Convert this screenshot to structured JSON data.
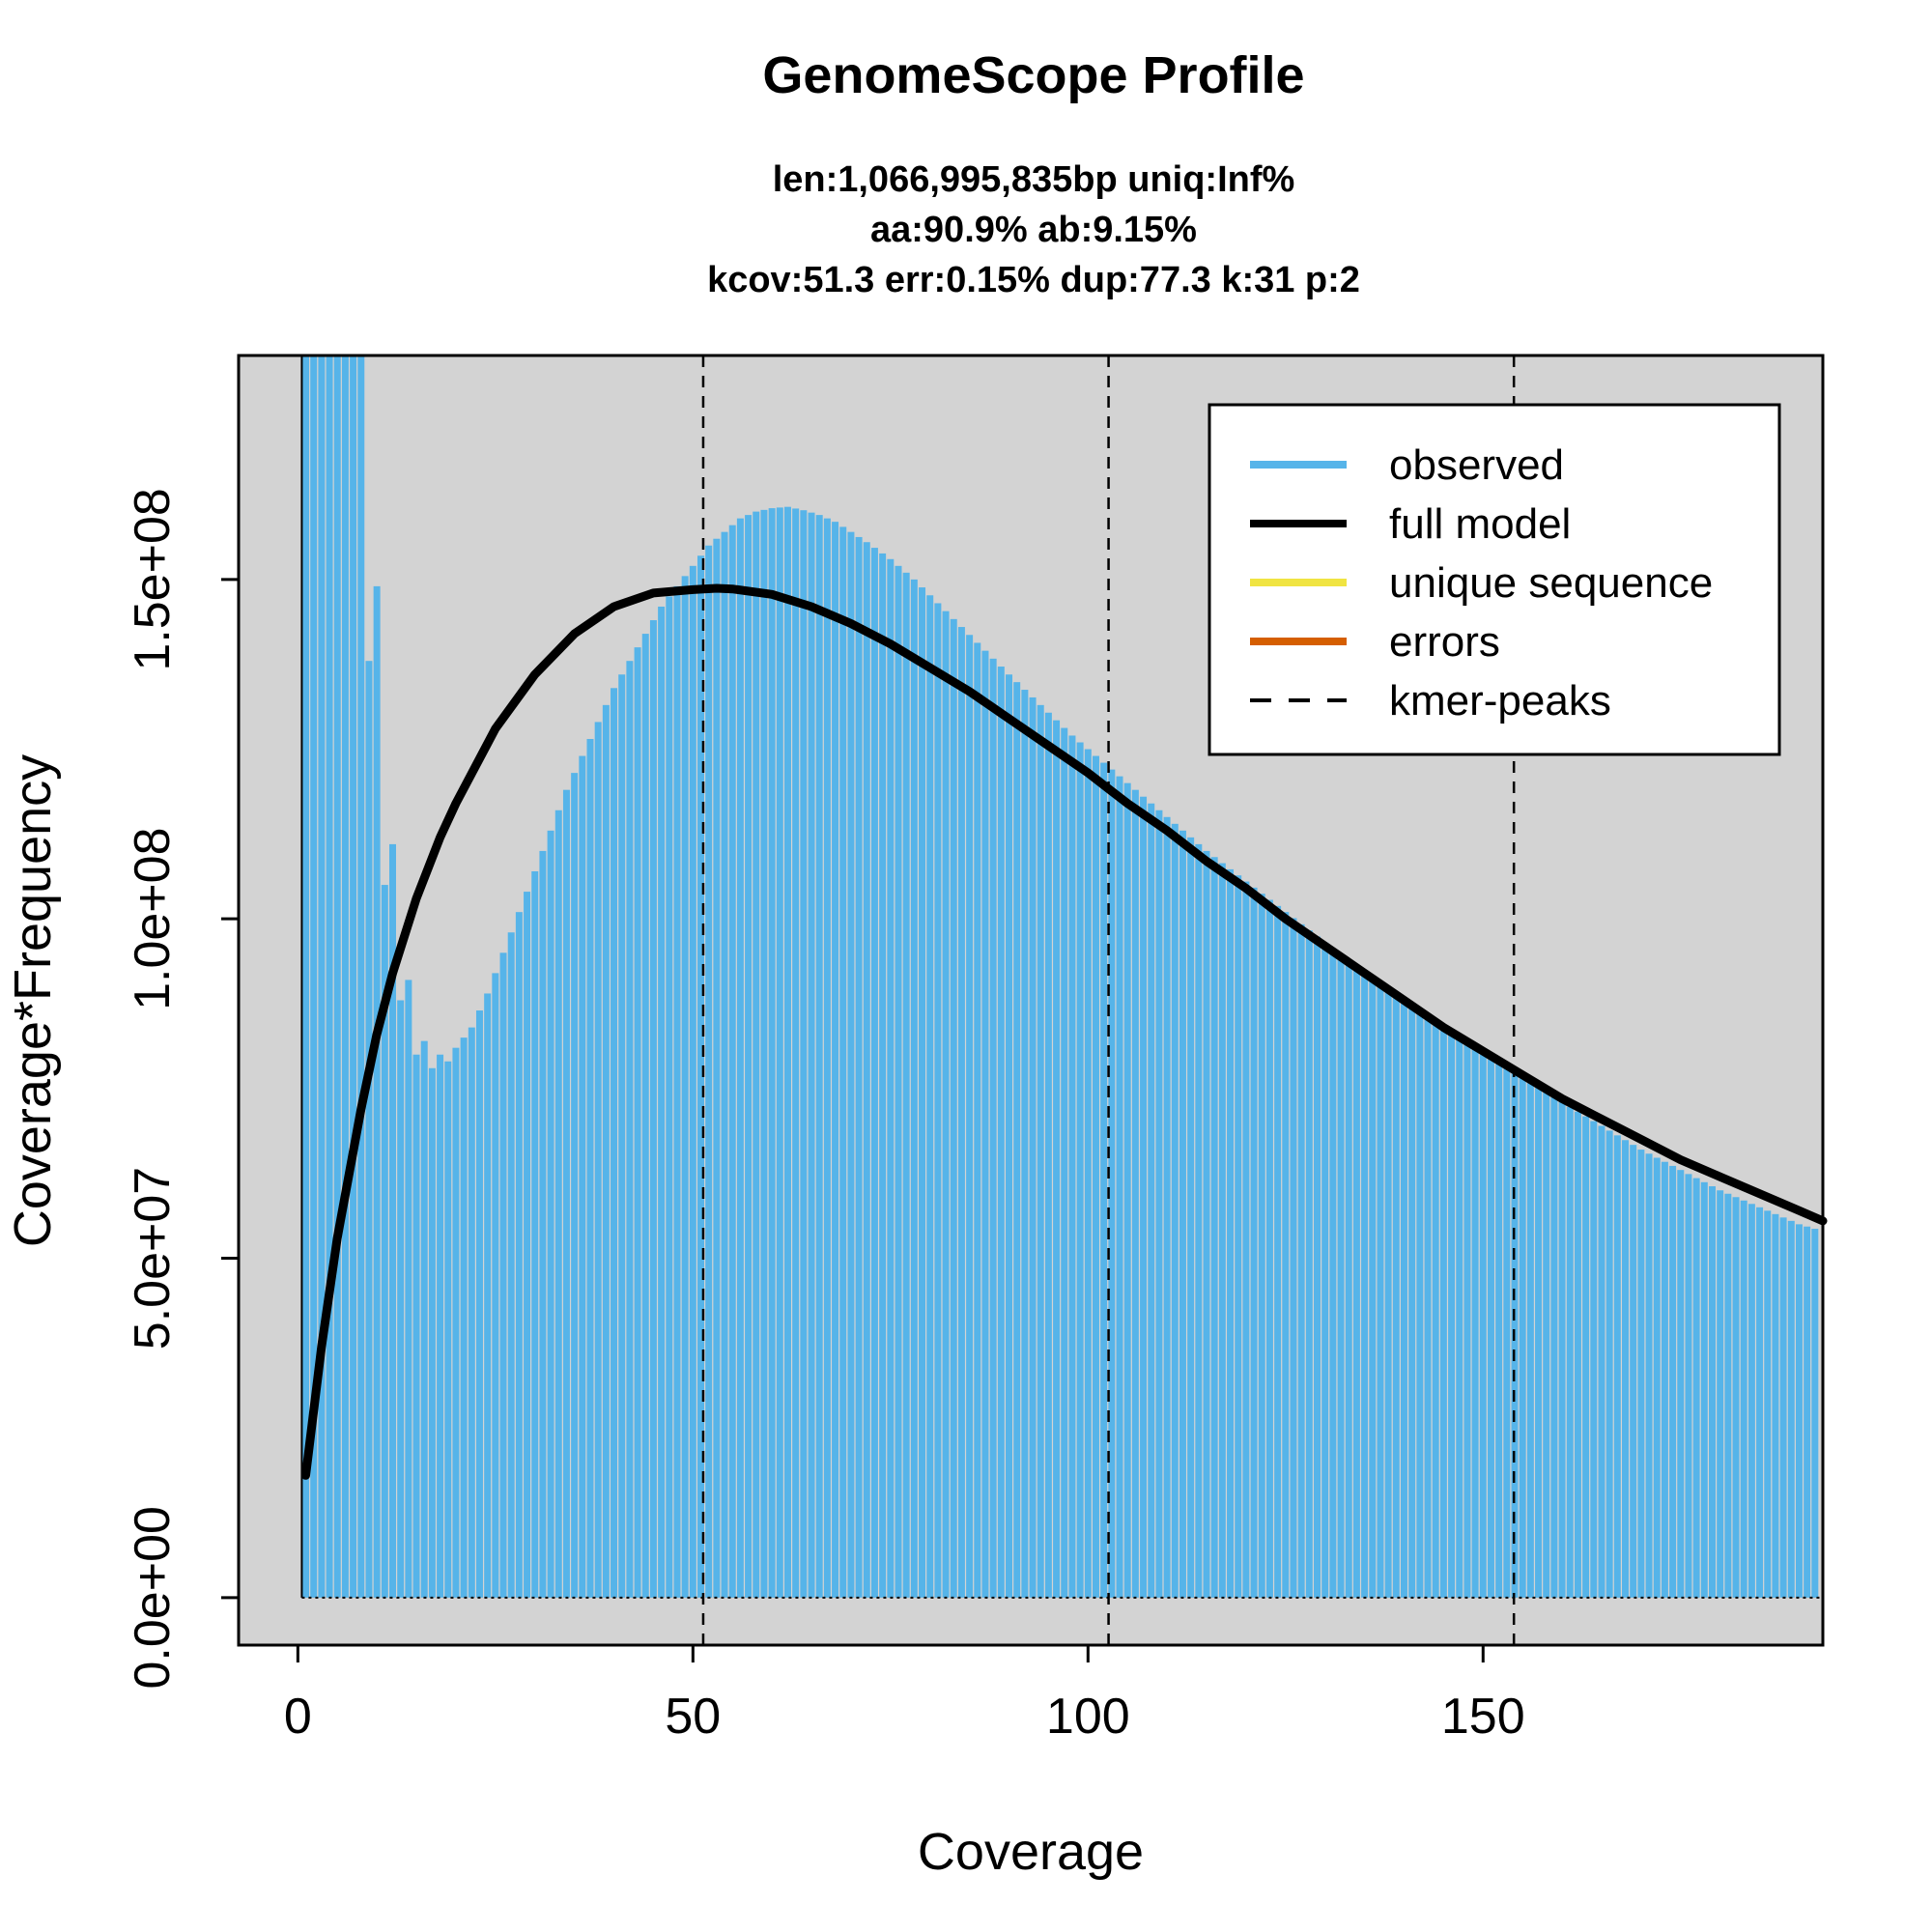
{
  "chart_data": {
    "type": "bar",
    "title": "GenomeScope Profile",
    "subtitle_lines": [
      "len:1,066,995,835bp uniq:Inf%",
      "aa:90.9% ab:9.15%",
      "kcov:51.3 err:0.15%  dup:77.3  k:31 p:2"
    ],
    "xlabel": "Coverage",
    "ylabel": "Coverage*Frequency",
    "xlim": [
      -7.5,
      193
    ],
    "ylim": [
      -7000000,
      183000000
    ],
    "x_ticks": [
      0,
      50,
      100,
      150
    ],
    "x_tick_labels": [
      "0",
      "50",
      "100",
      "150"
    ],
    "y_ticks": [
      0,
      50000000,
      100000000,
      150000000
    ],
    "y_tick_labels": [
      "0.0e+00",
      "5.0e+07",
      "1.0e+08",
      "1.5e+08"
    ],
    "kmer_peaks": [
      51.3,
      102.6,
      153.9
    ],
    "colors": {
      "observed": "#56b4e9",
      "full_model": "#000000",
      "unique_sequence": "#f0e442",
      "errors": "#d55e00",
      "kmer_peaks": "#000000",
      "plot_background": "#d3d3d3"
    },
    "legend": {
      "position": "top-right",
      "entries": [
        {
          "label": "observed",
          "style": "line",
          "color": "#56b4e9"
        },
        {
          "label": "full model",
          "style": "line",
          "color": "#000000"
        },
        {
          "label": "unique sequence",
          "style": "line",
          "color": "#f0e442"
        },
        {
          "label": "errors",
          "style": "line",
          "color": "#d55e00"
        },
        {
          "label": "kmer-peaks",
          "style": "dashed",
          "color": "#000000"
        }
      ]
    },
    "observed_anchors": {
      "x": [
        1,
        8,
        9,
        10,
        11,
        12,
        13,
        14,
        15,
        16,
        17,
        18,
        19,
        20,
        22,
        24,
        26,
        28,
        30,
        32,
        34,
        36,
        38,
        40,
        42,
        44,
        46,
        48,
        50,
        52,
        54,
        56,
        58,
        60,
        62,
        64,
        66,
        68,
        70,
        72,
        75,
        78,
        81,
        84,
        87,
        90,
        94,
        98,
        102,
        106,
        110,
        115,
        120,
        125,
        130,
        135,
        140,
        145,
        150,
        155,
        160,
        165,
        170,
        175,
        180,
        185,
        190,
        193
      ],
      "y": [
        183000000,
        183000000,
        138000000,
        149000000,
        105000000,
        111000000,
        88000000,
        91000000,
        80000000,
        82000000,
        78000000,
        80000000,
        79000000,
        81000000,
        84000000,
        89000000,
        95000000,
        101000000,
        107000000,
        113000000,
        119000000,
        124000000,
        129000000,
        134000000,
        138000000,
        142000000,
        146000000,
        149000000,
        152000000,
        155000000,
        157000000,
        159000000,
        160000000,
        160500000,
        160700000,
        160200000,
        159500000,
        158500000,
        157000000,
        155500000,
        153000000,
        150000000,
        146500000,
        143000000,
        139500000,
        136000000,
        131500000,
        127000000,
        123000000,
        119000000,
        115000000,
        110000000,
        105500000,
        101000000,
        96500000,
        92000000,
        88000000,
        84000000,
        80000000,
        76500000,
        73000000,
        69500000,
        66000000,
        63000000,
        60000000,
        57500000,
        55000000,
        54000000
      ]
    },
    "full_model_anchors": {
      "x": [
        1,
        3,
        5,
        8,
        10,
        12,
        15,
        18,
        20,
        25,
        30,
        35,
        40,
        45,
        50,
        53,
        55,
        60,
        65,
        70,
        75,
        80,
        85,
        90,
        95,
        100,
        105,
        110,
        115,
        120,
        125,
        130,
        135,
        140,
        145,
        150,
        155,
        160,
        165,
        170,
        175,
        180,
        185,
        190,
        193
      ],
      "y": [
        18000000,
        37000000,
        53000000,
        72000000,
        83000000,
        92000000,
        103000000,
        112000000,
        117000000,
        128000000,
        136000000,
        142000000,
        146000000,
        148000000,
        148500000,
        148700000,
        148600000,
        147800000,
        146000000,
        143500000,
        140500000,
        137000000,
        133500000,
        129500000,
        125500000,
        121500000,
        117000000,
        113000000,
        108500000,
        104500000,
        100000000,
        96000000,
        92000000,
        88000000,
        84000000,
        80500000,
        77000000,
        73500000,
        70500000,
        67500000,
        64500000,
        62000000,
        59500000,
        57000000,
        55500000
      ]
    }
  }
}
